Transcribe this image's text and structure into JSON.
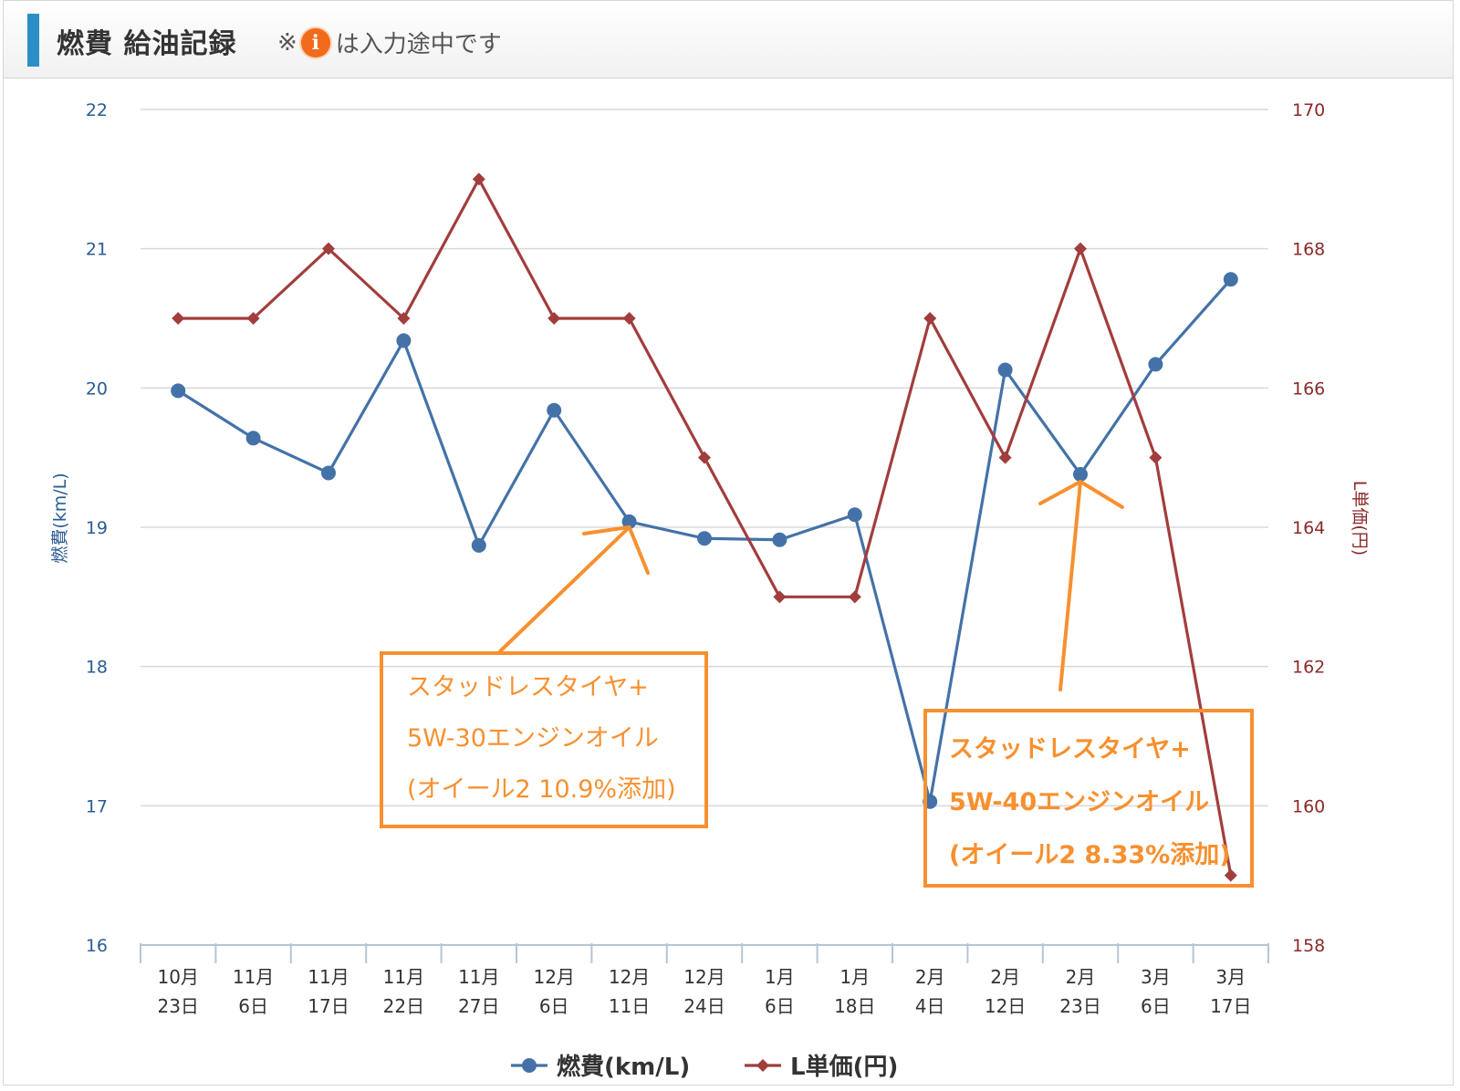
{
  "header": {
    "title": "燃費 給油記録",
    "note_prefix": "※",
    "note_icon": "info-icon",
    "note_icon_glyph": "i",
    "note_suffix": "は入力途中です"
  },
  "chart_data": {
    "type": "line",
    "categories": [
      [
        "10月",
        "23日"
      ],
      [
        "11月",
        "6日"
      ],
      [
        "11月",
        "17日"
      ],
      [
        "11月",
        "22日"
      ],
      [
        "11月",
        "27日"
      ],
      [
        "12月",
        "6日"
      ],
      [
        "12月",
        "11日"
      ],
      [
        "12月",
        "24日"
      ],
      [
        "1月",
        "6日"
      ],
      [
        "1月",
        "18日"
      ],
      [
        "2月",
        "4日"
      ],
      [
        "2月",
        "12日"
      ],
      [
        "2月",
        "23日"
      ],
      [
        "3月",
        "6日"
      ],
      [
        "3月",
        "17日"
      ]
    ],
    "y_left": {
      "label": "燃費(km/L)",
      "range": [
        16,
        22
      ],
      "ticks": [
        "16",
        "17",
        "18",
        "19",
        "20",
        "21",
        "22"
      ],
      "color": "#2b5c94"
    },
    "y_right": {
      "label": "L単価(円)",
      "range": [
        158,
        170
      ],
      "ticks": [
        "158",
        "160",
        "162",
        "164",
        "166",
        "168",
        "170"
      ],
      "color": "#8b2a2a"
    },
    "grid": true,
    "legend_position": "bottom",
    "series": [
      {
        "name": "燃費(km/L)",
        "axis": "left",
        "color": "#4472a8",
        "marker": "circle",
        "values": [
          19.98,
          19.64,
          19.39,
          20.34,
          18.87,
          19.84,
          19.04,
          18.92,
          18.91,
          19.09,
          17.03,
          20.13,
          19.38,
          20.17,
          20.78
        ]
      },
      {
        "name": "L単価(円)",
        "axis": "right",
        "color": "#a23d3d",
        "marker": "diamond",
        "values": [
          167,
          167,
          168,
          167,
          169,
          167,
          167,
          165,
          163,
          163,
          167,
          165,
          168,
          165,
          159
        ]
      }
    ],
    "annotations": [
      {
        "lines": [
          "スタッドレスタイヤ+",
          "5W-30エンジンオイル",
          "(オイール2 10.9%添加)"
        ],
        "bold": false,
        "points_to_category": 6
      },
      {
        "lines": [
          "スタッドレスタイヤ+",
          "5W-40エンジンオイル",
          "(オイール2 8.33%添加)"
        ],
        "bold": true,
        "points_to_category": 12
      }
    ]
  }
}
